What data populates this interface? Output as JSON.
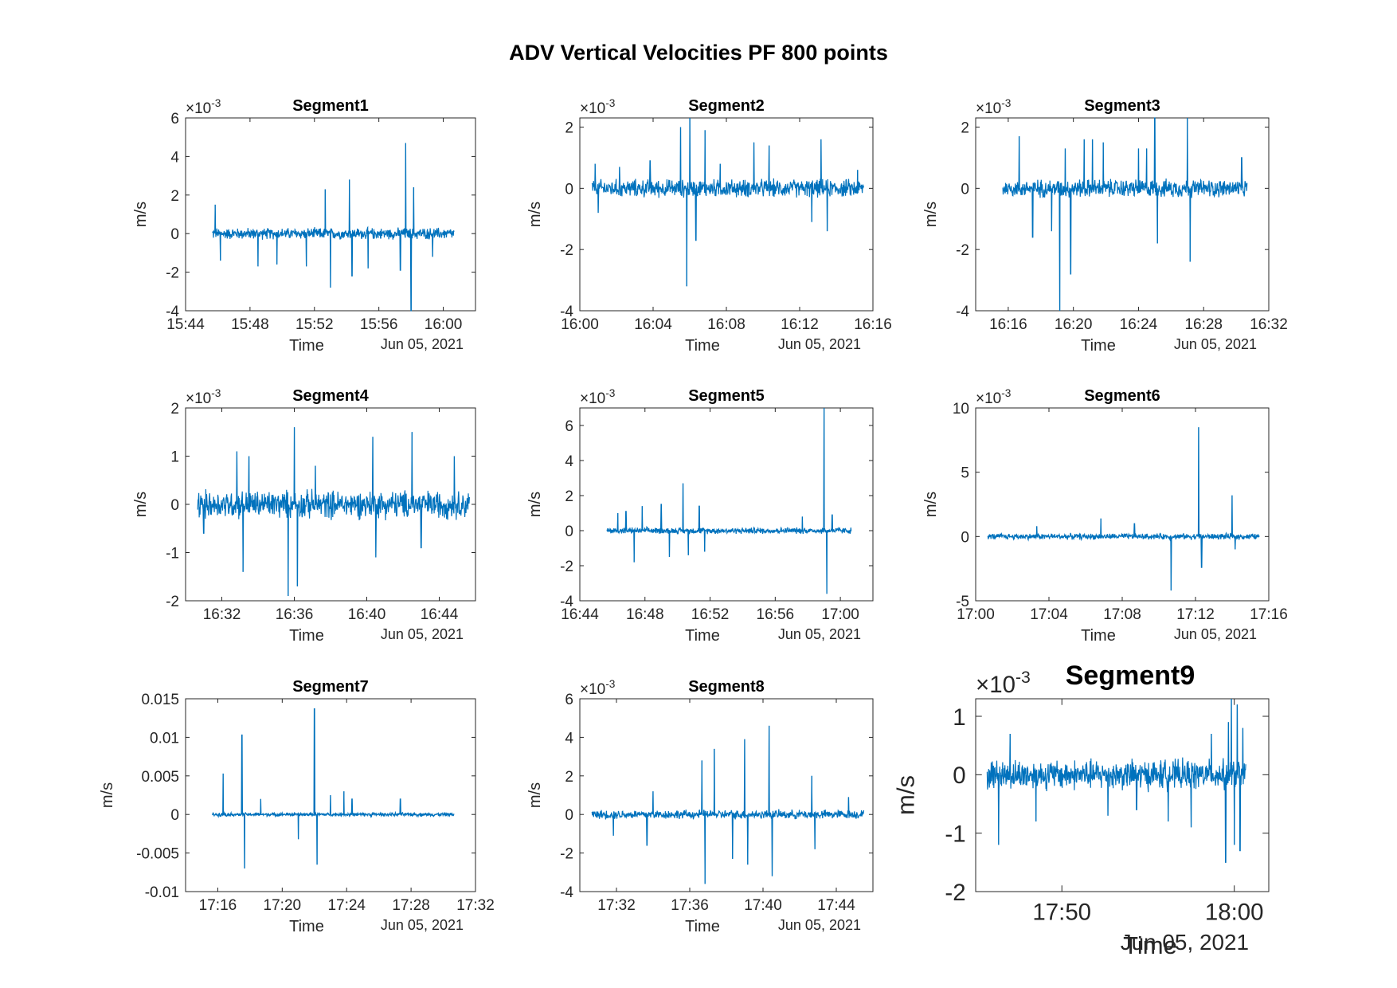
{
  "figure_title": "ADV Vertical Velocities PF 800 points",
  "chart_data": [
    {
      "type": "line",
      "title": "Segment1",
      "xlabel": "Time",
      "xdate": "Jun 05, 2021",
      "ylabel": "m/s",
      "exponent_label": "×10",
      "exponent": "-3",
      "color": "#0072BD",
      "grid": false,
      "xlim": [
        "15:44",
        "16:02"
      ],
      "xticks": [
        "15:44",
        "15:48",
        "15:52",
        "15:56",
        "16:00"
      ],
      "ylim": [
        -4,
        6
      ],
      "yticks": [
        "-4",
        "-2",
        "0",
        "2",
        "4",
        "6"
      ],
      "data_range": [
        "15:45:40",
        "16:00:40"
      ],
      "baseline": 0,
      "noise": 0.25,
      "spikes": [
        [
          "15:45:50",
          1.5
        ],
        [
          "15:46:10",
          -1.4
        ],
        [
          "15:48:30",
          -1.7
        ],
        [
          "15:49:40",
          -1.6
        ],
        [
          "15:51:30",
          -1.7
        ],
        [
          "15:52:40",
          2.3
        ],
        [
          "15:53:00",
          -2.8
        ],
        [
          "15:54:10",
          2.8
        ],
        [
          "15:54:20",
          -2.2
        ],
        [
          "15:55:20",
          -1.8
        ],
        [
          "15:57:40",
          4.7
        ],
        [
          "15:58:00",
          -4.0
        ],
        [
          "15:58:10",
          2.4
        ],
        [
          "15:57:20",
          -1.9
        ],
        [
          "15:59:20",
          -1.2
        ]
      ]
    },
    {
      "type": "line",
      "title": "Segment2",
      "xlabel": "Time",
      "xdate": "Jun 05, 2021",
      "ylabel": "m/s",
      "exponent_label": "×10",
      "exponent": "-3",
      "color": "#0072BD",
      "grid": false,
      "xlim": [
        "16:00",
        "16:16"
      ],
      "xticks": [
        "16:00",
        "16:04",
        "16:08",
        "16:12",
        "16:16"
      ],
      "ylim": [
        -4,
        2.3
      ],
      "yticks": [
        "-4",
        "-2",
        "0",
        "2"
      ],
      "data_range": [
        "16:00:40",
        "16:15:30"
      ],
      "baseline": 0,
      "noise": 0.25,
      "spikes": [
        [
          "16:00:50",
          0.8
        ],
        [
          "16:01:00",
          -0.8
        ],
        [
          "16:02:10",
          0.7
        ],
        [
          "16:03:50",
          0.9
        ],
        [
          "16:05:30",
          2.0
        ],
        [
          "16:05:50",
          -3.2
        ],
        [
          "16:06:00",
          2.3
        ],
        [
          "16:06:20",
          -1.7
        ],
        [
          "16:06:50",
          1.9
        ],
        [
          "16:07:40",
          0.8
        ],
        [
          "16:09:30",
          1.5
        ],
        [
          "16:10:20",
          1.4
        ],
        [
          "16:12:40",
          -1.1
        ],
        [
          "16:13:10",
          1.6
        ],
        [
          "16:13:30",
          -1.4
        ],
        [
          "16:15:10",
          0.6
        ]
      ]
    },
    {
      "type": "line",
      "title": "Segment3",
      "xlabel": "Time",
      "xdate": "Jun 05, 2021",
      "ylabel": "m/s",
      "exponent_label": "×10",
      "exponent": "-3",
      "color": "#0072BD",
      "grid": false,
      "xlim": [
        "16:14",
        "16:32"
      ],
      "xticks": [
        "16:16",
        "16:20",
        "16:24",
        "16:28",
        "16:32"
      ],
      "ylim": [
        -4,
        2.3
      ],
      "yticks": [
        "-4",
        "-2",
        "0",
        "2"
      ],
      "data_range": [
        "16:15:40",
        "16:30:40"
      ],
      "baseline": 0,
      "noise": 0.25,
      "spikes": [
        [
          "16:16:40",
          1.7
        ],
        [
          "16:17:30",
          -1.6
        ],
        [
          "16:18:40",
          -1.4
        ],
        [
          "16:19:10",
          -4.0
        ],
        [
          "16:19:30",
          1.3
        ],
        [
          "16:19:50",
          -2.8
        ],
        [
          "16:20:40",
          1.6
        ],
        [
          "16:21:10",
          1.6
        ],
        [
          "16:21:50",
          1.5
        ],
        [
          "16:24:00",
          1.3
        ],
        [
          "16:24:30",
          1.3
        ],
        [
          "16:25:00",
          2.3
        ],
        [
          "16:25:10",
          -1.8
        ],
        [
          "16:27:00",
          2.3
        ],
        [
          "16:27:10",
          -2.4
        ],
        [
          "16:30:20",
          1.0
        ]
      ]
    },
    {
      "type": "line",
      "title": "Segment4",
      "xlabel": "Time",
      "xdate": "Jun 05, 2021",
      "ylabel": "m/s",
      "exponent_label": "×10",
      "exponent": "-3",
      "color": "#0072BD",
      "grid": false,
      "xlim": [
        "16:30",
        "16:46"
      ],
      "xticks": [
        "16:32",
        "16:36",
        "16:40",
        "16:44"
      ],
      "ylim": [
        -2,
        2
      ],
      "yticks": [
        "-2",
        "-1",
        "0",
        "1",
        "2"
      ],
      "data_range": [
        "16:30:40",
        "16:45:40"
      ],
      "baseline": 0,
      "noise": 0.25,
      "spikes": [
        [
          "16:31:00",
          -0.6
        ],
        [
          "16:32:50",
          1.1
        ],
        [
          "16:33:10",
          -1.4
        ],
        [
          "16:33:30",
          1.0
        ],
        [
          "16:35:40",
          -1.9
        ],
        [
          "16:36:00",
          1.6
        ],
        [
          "16:36:10",
          -1.7
        ],
        [
          "16:37:10",
          0.8
        ],
        [
          "16:40:20",
          1.4
        ],
        [
          "16:40:30",
          -1.1
        ],
        [
          "16:42:30",
          1.5
        ],
        [
          "16:43:00",
          -0.9
        ],
        [
          "16:44:50",
          1.0
        ]
      ]
    },
    {
      "type": "line",
      "title": "Segment5",
      "xlabel": "Time",
      "xdate": "Jun 05, 2021",
      "ylabel": "m/s",
      "exponent_label": "×10",
      "exponent": "-3",
      "color": "#0072BD",
      "grid": false,
      "xlim": [
        "16:44",
        "17:02"
      ],
      "xticks": [
        "16:44",
        "16:48",
        "16:52",
        "16:56",
        "17:00"
      ],
      "ylim": [
        -4,
        7
      ],
      "yticks": [
        "-4",
        "-2",
        "0",
        "2",
        "4",
        "6"
      ],
      "data_range": [
        "16:45:40",
        "17:00:40"
      ],
      "baseline": 0,
      "noise": 0.15,
      "spikes": [
        [
          "16:46:20",
          1.0
        ],
        [
          "16:46:50",
          1.1
        ],
        [
          "16:47:20",
          -1.8
        ],
        [
          "16:47:50",
          1.4
        ],
        [
          "16:49:00",
          1.5
        ],
        [
          "16:49:30",
          -1.5
        ],
        [
          "16:50:20",
          2.7
        ],
        [
          "16:50:40",
          -1.4
        ],
        [
          "16:51:20",
          1.4
        ],
        [
          "16:51:40",
          -1.2
        ],
        [
          "16:57:40",
          0.8
        ],
        [
          "16:59:00",
          7.0
        ],
        [
          "16:59:10",
          -3.6
        ],
        [
          "16:59:30",
          0.9
        ]
      ]
    },
    {
      "type": "line",
      "title": "Segment6",
      "xlabel": "Time",
      "xdate": "Jun 05, 2021",
      "ylabel": "m/s",
      "exponent_label": "×10",
      "exponent": "-3",
      "color": "#0072BD",
      "grid": false,
      "xlim": [
        "17:00",
        "17:16"
      ],
      "xticks": [
        "17:00",
        "17:04",
        "17:08",
        "17:12",
        "17:16"
      ],
      "ylim": [
        -5,
        10
      ],
      "yticks": [
        "-5",
        "0",
        "5",
        "10"
      ],
      "data_range": [
        "17:00:40",
        "17:15:30"
      ],
      "baseline": 0,
      "noise": 0.2,
      "spikes": [
        [
          "17:03:20",
          0.8
        ],
        [
          "17:06:50",
          1.4
        ],
        [
          "17:08:40",
          1.0
        ],
        [
          "17:10:40",
          -4.2
        ],
        [
          "17:12:10",
          8.5
        ],
        [
          "17:12:20",
          -2.4
        ],
        [
          "17:14:00",
          3.2
        ],
        [
          "17:14:10",
          -1.0
        ]
      ]
    },
    {
      "type": "line",
      "title": "Segment7",
      "xlabel": "Time",
      "xdate": "Jun 05, 2021",
      "ylabel": "m/s",
      "exponent_label": "",
      "exponent": "",
      "color": "#0072BD",
      "grid": false,
      "xlim": [
        "17:14",
        "17:32"
      ],
      "xticks": [
        "17:16",
        "17:20",
        "17:24",
        "17:28",
        "17:32"
      ],
      "ylim": [
        -0.01,
        0.015
      ],
      "yticks": [
        "-0.01",
        "-0.005",
        "0",
        "0.005",
        "0.01",
        "0.015"
      ],
      "data_range": [
        "17:15:40",
        "17:30:40"
      ],
      "baseline": 0,
      "noise": 0.0002,
      "spikes": [
        [
          "17:16:20",
          0.0053
        ],
        [
          "17:17:30",
          0.0103
        ],
        [
          "17:17:40",
          -0.007
        ],
        [
          "17:18:40",
          0.002
        ],
        [
          "17:21:00",
          -0.0032
        ],
        [
          "17:22:00",
          0.0137
        ],
        [
          "17:22:10",
          -0.0065
        ],
        [
          "17:23:00",
          0.0025
        ],
        [
          "17:23:50",
          0.003
        ],
        [
          "17:24:20",
          0.002
        ],
        [
          "17:27:20",
          0.002
        ]
      ]
    },
    {
      "type": "line",
      "title": "Segment8",
      "xlabel": "Time",
      "xdate": "Jun 05, 2021",
      "ylabel": "m/s",
      "exponent_label": "×10",
      "exponent": "-3",
      "color": "#0072BD",
      "grid": false,
      "xlim": [
        "17:30",
        "17:46"
      ],
      "xticks": [
        "17:32",
        "17:36",
        "17:40",
        "17:44"
      ],
      "ylim": [
        -4,
        6
      ],
      "yticks": [
        "-4",
        "-2",
        "0",
        "2",
        "4",
        "6"
      ],
      "data_range": [
        "17:30:40",
        "17:45:30"
      ],
      "baseline": 0,
      "noise": 0.2,
      "spikes": [
        [
          "17:31:50",
          -1.1
        ],
        [
          "17:33:40",
          -1.6
        ],
        [
          "17:34:00",
          1.2
        ],
        [
          "17:36:40",
          2.8
        ],
        [
          "17:36:50",
          -3.6
        ],
        [
          "17:37:20",
          3.4
        ],
        [
          "17:38:20",
          -2.3
        ],
        [
          "17:39:00",
          3.9
        ],
        [
          "17:39:10",
          -2.6
        ],
        [
          "17:40:20",
          4.6
        ],
        [
          "17:40:30",
          -3.2
        ],
        [
          "17:42:40",
          2.0
        ],
        [
          "17:42:50",
          -1.8
        ],
        [
          "17:44:40",
          0.9
        ]
      ]
    },
    {
      "type": "line",
      "title": "Segment9",
      "xlabel": "Time",
      "xdate": "Jun 05, 2021",
      "ylabel": "m/s",
      "exponent_label": "×10",
      "exponent": "-3",
      "color": "#0072BD",
      "grid": false,
      "xlim": [
        "17:45",
        "18:02"
      ],
      "xticks": [
        "17:50",
        "18:00"
      ],
      "ylim": [
        -2,
        1.3
      ],
      "yticks": [
        "-2",
        "-1",
        "0",
        "1"
      ],
      "data_range": [
        "17:45:40",
        "18:00:40"
      ],
      "baseline": 0,
      "noise": 0.22,
      "spikes": [
        [
          "17:46:20",
          -1.2
        ],
        [
          "17:47:00",
          0.7
        ],
        [
          "17:48:30",
          -0.8
        ],
        [
          "17:52:40",
          -0.7
        ],
        [
          "17:54:20",
          -0.6
        ],
        [
          "17:56:10",
          -0.8
        ],
        [
          "17:57:30",
          -0.9
        ],
        [
          "17:58:40",
          0.7
        ],
        [
          "17:59:30",
          -1.5
        ],
        [
          "17:59:40",
          0.9
        ],
        [
          "17:59:50",
          1.3
        ],
        [
          "18:00:00",
          -1.2
        ],
        [
          "18:00:10",
          1.2
        ],
        [
          "18:00:20",
          -1.3
        ],
        [
          "18:00:30",
          0.8
        ]
      ]
    }
  ]
}
